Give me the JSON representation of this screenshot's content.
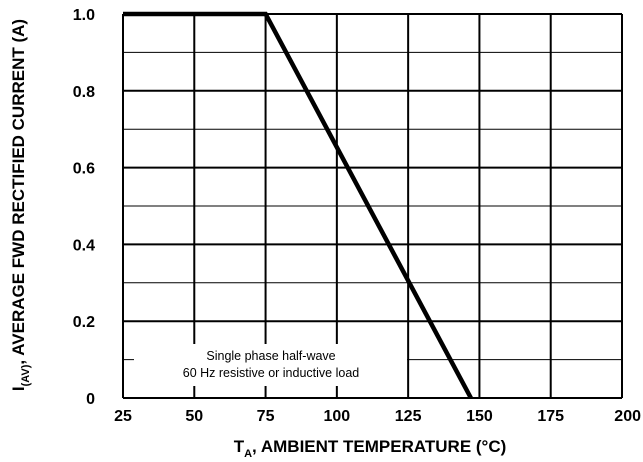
{
  "chart_data": {
    "type": "line",
    "x": [
      25,
      75,
      147
    ],
    "series": [
      {
        "values": [
          1.0,
          1.0,
          0.0
        ]
      }
    ],
    "xlim": [
      25,
      200
    ],
    "ylim": [
      0,
      1.0
    ],
    "x_ticks": [
      25,
      50,
      75,
      100,
      125,
      150,
      175,
      200
    ],
    "x_tick_labels": [
      "25",
      "50",
      "75",
      "100",
      "125",
      "150",
      "175",
      "200"
    ],
    "y_ticks": [
      0,
      0.2,
      0.4,
      0.6,
      0.8,
      1.0
    ],
    "y_tick_labels": [
      "0",
      "0.2",
      "0.4",
      "0.6",
      "0.8",
      "1.0"
    ],
    "grid": true,
    "xlabel": {
      "prefix": "T",
      "subscript": "A",
      "rest": ", AMBIENT TEMPERATURE (°C)"
    },
    "ylabel": {
      "prefix": "I",
      "subscript": "(AV)",
      "rest": ", AVERAGE FWD RECTIFIED CURRENT (A)"
    },
    "annotation": {
      "lines": [
        "Single phase half-wave",
        "60 Hz resistive or inductive load"
      ]
    }
  }
}
